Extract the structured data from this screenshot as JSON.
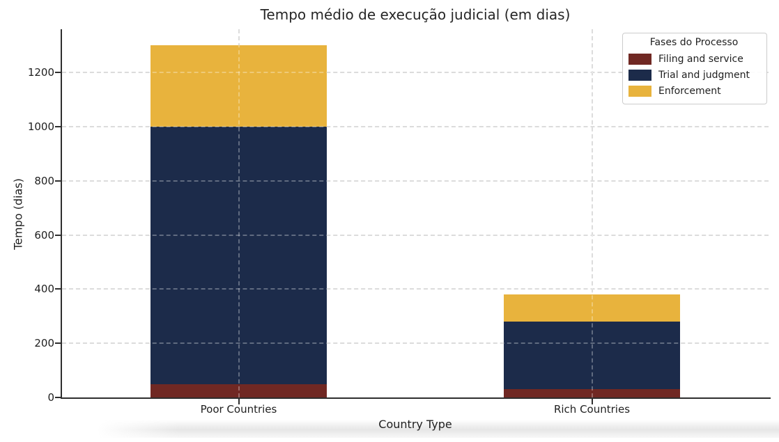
{
  "chart": {
    "title": "Tempo médio de execução judicial (em dias)",
    "xlabel": "Country Type",
    "ylabel": "Tempo (dias)",
    "legend_title": "Fases do Processo"
  },
  "chart_data": {
    "type": "bar",
    "stacked": true,
    "title": "Tempo médio de execução judicial (em dias)",
    "xlabel": "Country Type",
    "ylabel": "Tempo (dias)",
    "categories": [
      "Poor Countries",
      "Rich Countries"
    ],
    "series": [
      {
        "name": "Filing and service",
        "color": "#702823",
        "values": [
          50,
          30
        ]
      },
      {
        "name": "Trial and judgment",
        "color": "#1c2b4a",
        "values": [
          950,
          250
        ]
      },
      {
        "name": "Enforcement",
        "color": "#e8b33d",
        "values": [
          300,
          100
        ]
      }
    ],
    "totals": [
      1300,
      380
    ],
    "yticks": [
      0,
      200,
      400,
      600,
      800,
      1000,
      1200
    ],
    "ylim": [
      0,
      1360
    ],
    "grid": {
      "style": "dashed",
      "color": "#cdcdcd",
      "on": true
    },
    "legend": {
      "title": "Fases do Processo",
      "position": "upper right"
    },
    "colors": {
      "filing_and_service": "#702823",
      "trial_and_judgment": "#1c2b4a",
      "enforcement": "#e8b33d",
      "spine": "#2e2e2e",
      "grid": "#cdcdcd",
      "text": "#1f1f1f"
    }
  }
}
